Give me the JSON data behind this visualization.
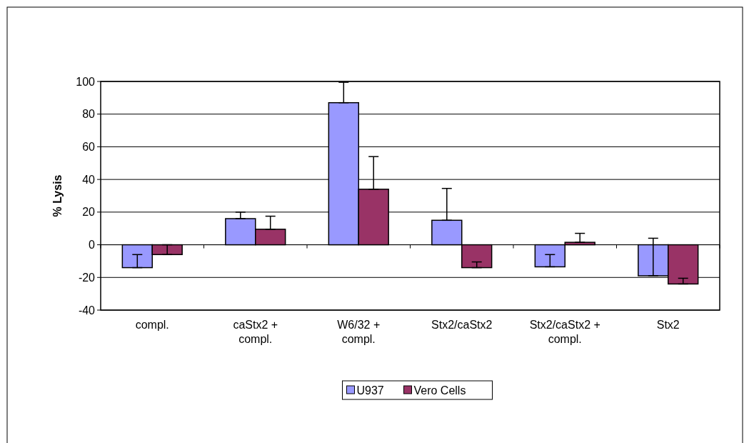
{
  "chart_data": {
    "type": "bar",
    "ylabel": "% Lysis",
    "categories": [
      "compl.",
      "caStx2 + compl.",
      "W6/32 + compl.",
      "Stx2/caStx2",
      "Stx2/caStx2 + compl.",
      "Stx2"
    ],
    "series": [
      {
        "name": "U937",
        "color": "#9999ff",
        "values": [
          -14,
          16,
          87,
          15,
          -13.5,
          -19
        ],
        "errors": [
          [
            -14,
            -6
          ],
          [
            16,
            20
          ],
          [
            87,
            99.5
          ],
          [
            15,
            34.5
          ],
          [
            -13.5,
            -6
          ],
          [
            -19,
            4
          ]
        ]
      },
      {
        "name": "Vero Cells",
        "color": "#993366",
        "values": [
          -6,
          9.5,
          34,
          -14,
          1.5,
          -24
        ],
        "errors": [
          [
            -6,
            0
          ],
          [
            9.5,
            17.5
          ],
          [
            34,
            54
          ],
          [
            -14,
            -10.5
          ],
          [
            1.5,
            7
          ],
          [
            -24,
            -20.5
          ]
        ]
      }
    ],
    "ylim": [
      -40,
      100
    ],
    "yticks": [
      -40,
      -20,
      0,
      20,
      40,
      60,
      80,
      100
    ],
    "grid": "y",
    "legend": "bottom"
  }
}
